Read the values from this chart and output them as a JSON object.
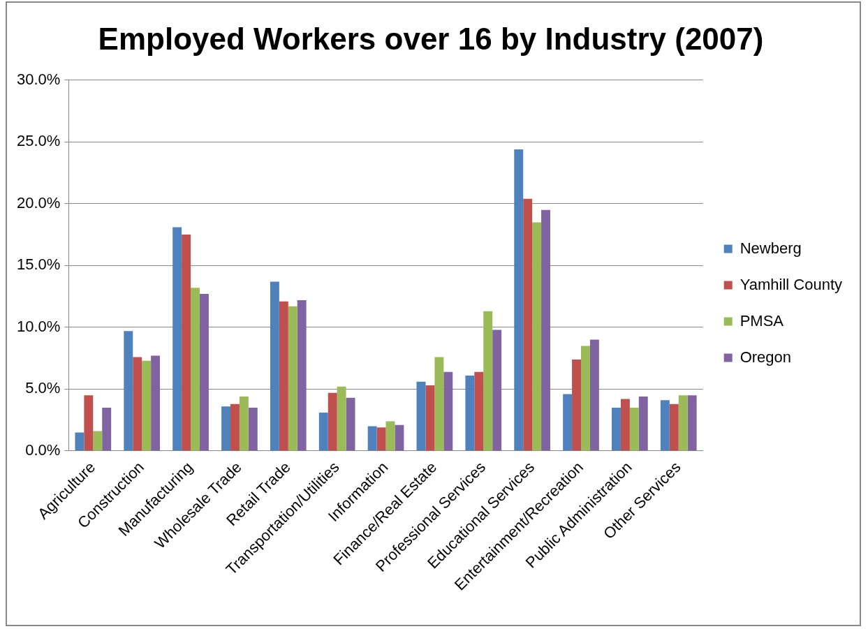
{
  "chart_data": {
    "type": "bar",
    "title": "Employed Workers over 16 by Industry (2007)",
    "categories": [
      "Agriculture",
      "Construction",
      "Manufacturing",
      "Wholesale Trade",
      "Retail Trade",
      "Transportation/Utilities",
      "Information",
      "Finance/Real Estate",
      "Professional Services",
      "Educational Services",
      "Entertainment/Recreation",
      "Public Administration",
      "Other Services"
    ],
    "series": [
      {
        "name": "Newberg",
        "color": "#4f81bd",
        "values": [
          1.5,
          9.7,
          18.1,
          3.6,
          13.7,
          3.1,
          2.0,
          5.6,
          6.1,
          24.4,
          4.6,
          3.5,
          4.1
        ]
      },
      {
        "name": "Yamhill County",
        "color": "#c0504d",
        "values": [
          4.5,
          7.6,
          17.5,
          3.8,
          12.1,
          4.7,
          1.9,
          5.3,
          6.4,
          20.4,
          7.4,
          4.2,
          3.8
        ]
      },
      {
        "name": "PMSA",
        "color": "#9bbb59",
        "values": [
          1.6,
          7.3,
          13.2,
          4.4,
          11.7,
          5.2,
          2.4,
          7.6,
          11.3,
          18.5,
          8.5,
          3.5,
          4.5
        ]
      },
      {
        "name": "Oregon",
        "color": "#8064a2",
        "values": [
          3.5,
          7.7,
          12.7,
          3.5,
          12.2,
          4.3,
          2.1,
          6.4,
          9.8,
          19.5,
          9.0,
          4.4,
          4.5
        ]
      }
    ],
    "ylim": [
      0,
      30
    ],
    "yticks": [
      {
        "value": 0,
        "label": "0.0%"
      },
      {
        "value": 5,
        "label": "5.0%"
      },
      {
        "value": 10,
        "label": "10.0%"
      },
      {
        "value": 15,
        "label": "15.0%"
      },
      {
        "value": 20,
        "label": "20.0%"
      },
      {
        "value": 25,
        "label": "25.0%"
      },
      {
        "value": 30,
        "label": "30.0%"
      }
    ],
    "grid": "y",
    "legend": "right"
  }
}
